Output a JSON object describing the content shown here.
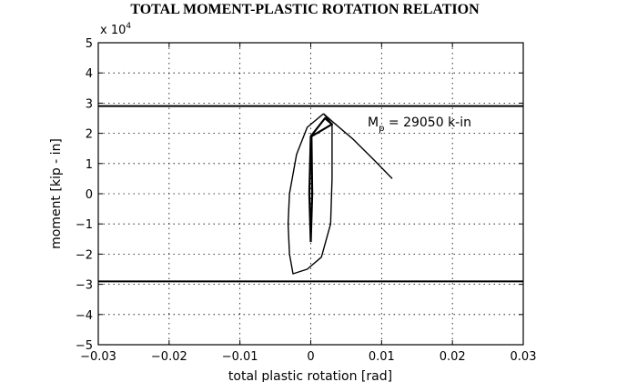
{
  "chart_data": {
    "type": "line",
    "title": "TOTAL MOMENT-PLASTIC ROTATION RELATION",
    "xlabel": "total plastic rotation [rad]",
    "ylabel": "moment  [kip - in]",
    "y_multiplier": "x 10",
    "y_multiplier_exp": "4",
    "xlim": [
      -0.03,
      0.03
    ],
    "ylim": [
      -5,
      5
    ],
    "x_ticks": [
      -0.03,
      -0.02,
      -0.01,
      0,
      0.01,
      0.02,
      0.03
    ],
    "x_tick_labels": [
      "−0.03",
      "−0.02",
      "−0.01",
      "0",
      "0.01",
      "0.02",
      "0.03"
    ],
    "y_ticks": [
      -5,
      -4,
      -3,
      -2,
      -1,
      0,
      1,
      2,
      3,
      4,
      5
    ],
    "y_tick_labels": [
      "−5",
      "−4",
      "−3",
      "−2",
      "−1",
      "0",
      "1",
      "2",
      "3",
      "4",
      "5"
    ],
    "grid": true,
    "annotation": {
      "text": "M",
      "subscript": "p",
      "rest": " = 29050 k-in"
    },
    "series": [
      {
        "values": [
          [
            -0.03,
            2.905
          ],
          [
            0.03,
            2.905
          ]
        ]
      },
      {
        "values": [
          [
            -0.03,
            -2.905
          ],
          [
            0.03,
            -2.905
          ]
        ]
      },
      {
        "values": [
          [
            0.0018,
            2.65
          ],
          [
            -0.0005,
            2.2
          ],
          [
            -0.002,
            1.3
          ],
          [
            -0.003,
            0.0
          ],
          [
            -0.0032,
            -1.0
          ],
          [
            -0.003,
            -2.0
          ],
          [
            -0.0025,
            -2.65
          ],
          [
            -0.0005,
            -2.5
          ],
          [
            0.0015,
            -2.1
          ],
          [
            0.0028,
            -1.0
          ],
          [
            0.003,
            0.5
          ],
          [
            0.003,
            2.3
          ],
          [
            0.0018,
            2.65
          ]
        ]
      },
      {
        "values": [
          [
            0.0018,
            2.65
          ],
          [
            0.003,
            2.4
          ],
          [
            0.006,
            1.8
          ],
          [
            0.009,
            1.1
          ],
          [
            0.0115,
            0.5
          ]
        ]
      },
      {
        "values": [
          [
            0.0,
            -1.6
          ],
          [
            -0.0002,
            0.0
          ],
          [
            0.0,
            1.9
          ],
          [
            0.002,
            2.5
          ],
          [
            0.003,
            2.3
          ],
          [
            0.0001,
            1.9
          ],
          [
            0.0002,
            0.0
          ],
          [
            0.0,
            -1.6
          ]
        ]
      }
    ]
  }
}
